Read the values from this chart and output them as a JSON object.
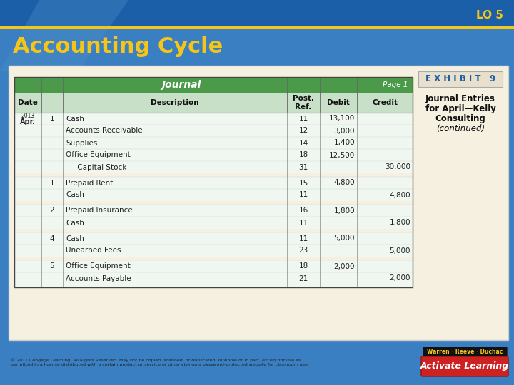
{
  "bg_top_color": "#1a5fa8",
  "bg_bottom_color": "#3a7fc1",
  "yellow_line_color": "#f5c518",
  "title_text": "Accounting Cycle",
  "title_color": "#f5c518",
  "lo_text": "LO 5",
  "lo_color": "#f5c518",
  "exhibit_label": "E X H I B I T   9",
  "exhibit_color": "#1a5fa8",
  "exhibit_bg": "#e8e0cc",
  "caption_lines": [
    "Journal Entries",
    "for April—Kelly",
    "Consulting",
    "(continued)"
  ],
  "caption_italic_line": "(continued)",
  "table_header_bg": "#4a9a4a",
  "table_header_text": "#ffffff",
  "table_subheader_bg": "#c8e0c8",
  "table_row_bg": "#f0f7f0",
  "table_border_color": "#888888",
  "journal_title": "Journal",
  "page_label": "Page 1",
  "rows": [
    {
      "date": "2013\nApr.",
      "day": "1",
      "desc": "Cash",
      "ref": "11",
      "debit": "13,100",
      "credit": ""
    },
    {
      "date": "",
      "day": "",
      "desc": "Accounts Receivable",
      "ref": "12",
      "debit": "3,000",
      "credit": ""
    },
    {
      "date": "",
      "day": "",
      "desc": "Supplies",
      "ref": "14",
      "debit": "1,400",
      "credit": ""
    },
    {
      "date": "",
      "day": "",
      "desc": "Office Equipment",
      "ref": "18",
      "debit": "12,500",
      "credit": ""
    },
    {
      "date": "",
      "day": "",
      "desc": "     Capital Stock",
      "ref": "31",
      "debit": "",
      "credit": "30,000"
    },
    {
      "date": "",
      "day": "1",
      "desc": "Prepaid Rent",
      "ref": "15",
      "debit": "4,800",
      "credit": ""
    },
    {
      "date": "",
      "day": "",
      "desc": "Cash",
      "ref": "11",
      "debit": "",
      "credit": "4,800"
    },
    {
      "date": "",
      "day": "2",
      "desc": "Prepaid Insurance",
      "ref": "16",
      "debit": "1,800",
      "credit": ""
    },
    {
      "date": "",
      "day": "",
      "desc": "Cash",
      "ref": "11",
      "debit": "",
      "credit": "1,800"
    },
    {
      "date": "",
      "day": "4",
      "desc": "Cash",
      "ref": "11",
      "debit": "5,000",
      "credit": ""
    },
    {
      "date": "",
      "day": "",
      "desc": "Unearned Fees",
      "ref": "23",
      "debit": "",
      "credit": "5,000"
    },
    {
      "date": "",
      "day": "5",
      "desc": "Office Equipment",
      "ref": "18",
      "debit": "2,000",
      "credit": ""
    },
    {
      "date": "",
      "day": "",
      "desc": "Accounts Payable",
      "ref": "21",
      "debit": "",
      "credit": "2,000"
    }
  ],
  "copyright_text": "© 2011 Cengage Learning. All Rights Reserved. May not be copied, scanned, or duplicated, in whole or in part, except for use as\npermitted in a license distributed with a certain product or service or otherwise on a password-protected website for classroom use.",
  "warren_text": "Warren · Reeve · Duchac",
  "activate_text": "Activate Learning"
}
